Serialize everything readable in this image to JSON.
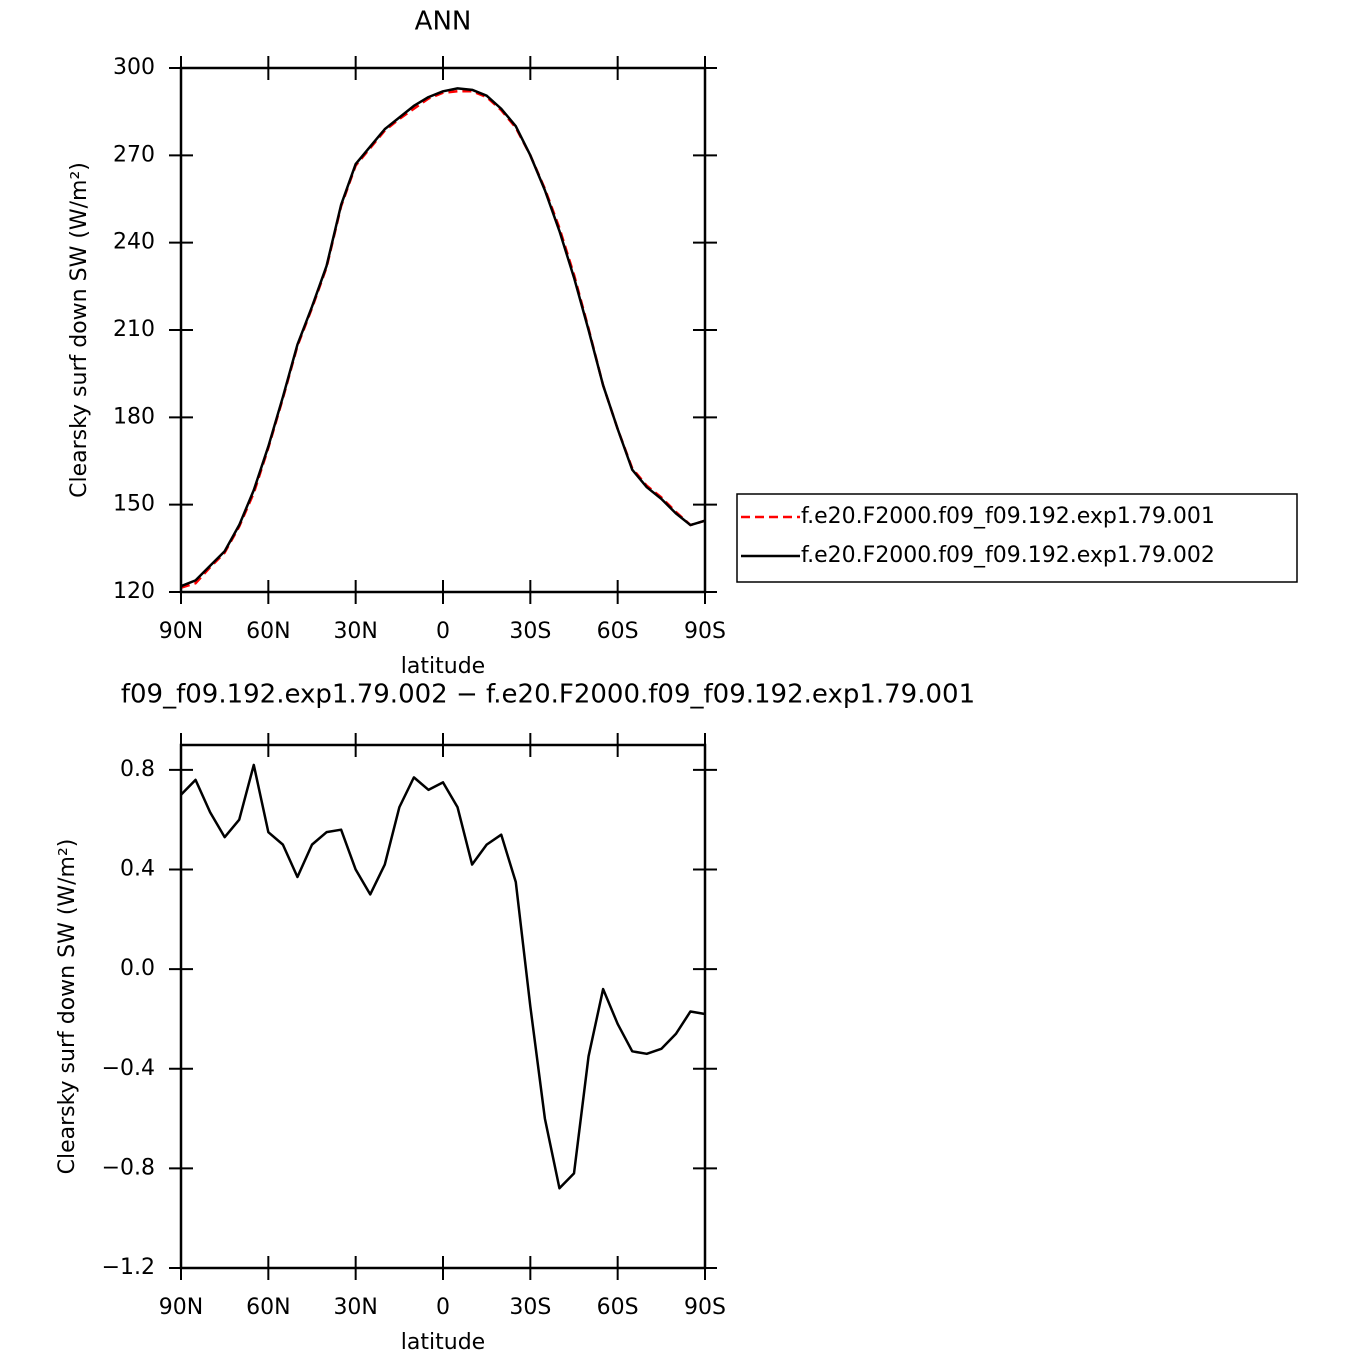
{
  "chart_data": [
    {
      "type": "line",
      "title": "ANN",
      "xlabel": "latitude",
      "ylabel": "Clearsky surf down SW (W/m²)",
      "x": [
        90,
        85,
        80,
        75,
        70,
        65,
        60,
        55,
        50,
        45,
        40,
        35,
        30,
        25,
        20,
        15,
        10,
        5,
        0,
        -5,
        -10,
        -15,
        -20,
        -25,
        -30,
        -35,
        -40,
        -45,
        -50,
        -55,
        -60,
        -65,
        -70,
        -75,
        -80,
        -85,
        -90
      ],
      "series": [
        {
          "name": "f.e20.F2000.f09_f09.192.exp1.79.001",
          "color": "#ff0000",
          "dashed": true,
          "values": [
            121.5,
            123,
            128.5,
            133.5,
            142.5,
            154,
            169.5,
            186.5,
            204.5,
            217.5,
            231.5,
            252.5,
            266.5,
            272.5,
            278.5,
            282.5,
            286,
            289.5,
            291.5,
            292,
            292,
            290,
            285.5,
            279.5,
            270,
            258.5,
            245,
            229,
            210.5,
            191,
            176,
            162.5,
            156.5,
            152.5,
            147.5,
            143,
            144.5
          ]
        },
        {
          "name": "f.e20.F2000.f09_f09.192.exp1.79.002",
          "color": "#000000",
          "dashed": false,
          "values": [
            122,
            124,
            129,
            134,
            143,
            155,
            170,
            187,
            205,
            218,
            232,
            253,
            267,
            273,
            279,
            283,
            287,
            290,
            292,
            293,
            292.5,
            290.5,
            286,
            280,
            270,
            258,
            244,
            228,
            210,
            191,
            176,
            162,
            156,
            152,
            147,
            143,
            144.5
          ]
        }
      ],
      "xlim": [
        90,
        -90
      ],
      "xticks": [
        {
          "value": 90,
          "label": "90N"
        },
        {
          "value": 60,
          "label": "60N"
        },
        {
          "value": 30,
          "label": "30N"
        },
        0,
        {
          "value": -30,
          "label": "30S"
        },
        {
          "value": -60,
          "label": "60S"
        },
        {
          "value": -90,
          "label": "90S"
        }
      ],
      "ylim": [
        120,
        300
      ],
      "yticks": [
        120,
        150,
        180,
        210,
        240,
        270,
        300
      ]
    },
    {
      "type": "line",
      "title": "f09_f09.192.exp1.79.002 − f.e20.F2000.f09_f09.192.exp1.79.001",
      "xlabel": "latitude",
      "ylabel": "Clearsky surf down SW (W/m²)",
      "x": [
        90,
        85,
        80,
        75,
        70,
        65,
        60,
        55,
        50,
        45,
        40,
        35,
        30,
        25,
        20,
        15,
        10,
        5,
        0,
        -5,
        -10,
        -15,
        -20,
        -25,
        -30,
        -35,
        -40,
        -45,
        -50,
        -55,
        -60,
        -65,
        -70,
        -75,
        -80,
        -85,
        -90
      ],
      "values": [
        0.7,
        0.76,
        0.63,
        0.53,
        0.6,
        0.82,
        0.55,
        0.5,
        0.37,
        0.5,
        0.55,
        0.56,
        0.4,
        0.3,
        0.42,
        0.65,
        0.77,
        0.72,
        0.75,
        0.65,
        0.42,
        0.5,
        0.54,
        0.35,
        -0.15,
        -0.6,
        -0.88,
        -0.82,
        -0.35,
        -0.08,
        -0.22,
        -0.33,
        -0.34,
        -0.32,
        -0.26,
        -0.17,
        -0.18
      ],
      "color": "#000000",
      "xlim": [
        90,
        -90
      ],
      "xticks": [
        {
          "value": 90,
          "label": "90N"
        },
        {
          "value": 60,
          "label": "60N"
        },
        {
          "value": 30,
          "label": "30N"
        },
        0,
        {
          "value": -30,
          "label": "30S"
        },
        {
          "value": -60,
          "label": "60S"
        },
        {
          "value": -90,
          "label": "90S"
        }
      ],
      "ylim": [
        -1.2,
        0.9
      ],
      "yticks": [
        {
          "value": -1.2,
          "label": "−1.2"
        },
        {
          "value": -0.8,
          "label": "−0.8"
        },
        {
          "value": -0.4,
          "label": "−0.4"
        },
        {
          "value": 0,
          "label": "0.0"
        },
        0.4,
        0.8
      ]
    }
  ]
}
